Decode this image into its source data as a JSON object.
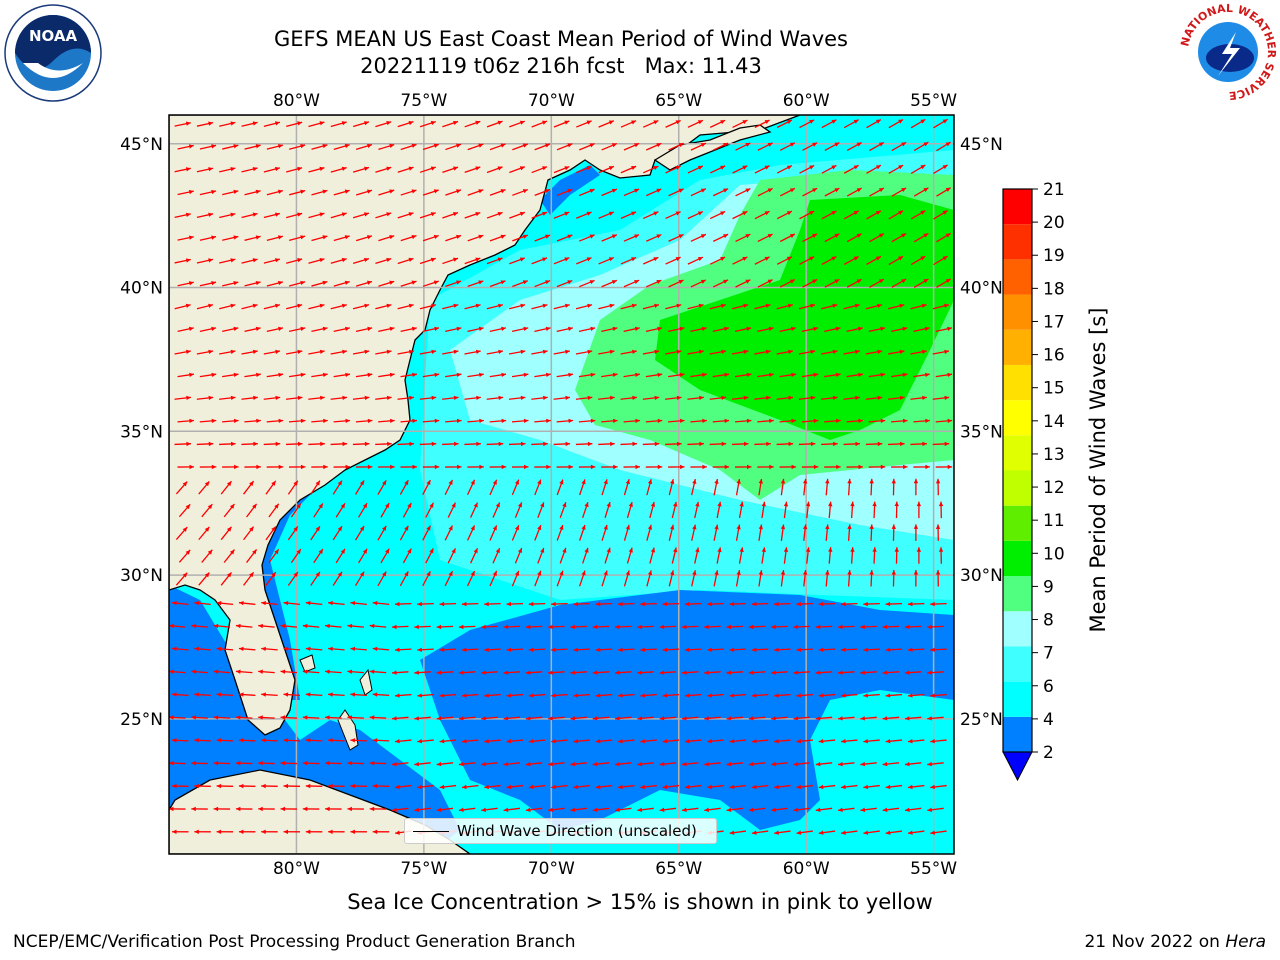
{
  "title": {
    "line1": "GEFS MEAN US East Coast Mean Period of Wind Waves",
    "line2": "20221119 t06z 216h fcst   Max: 11.43"
  },
  "map": {
    "lon_ticks": [
      "80°W",
      "75°W",
      "70°W",
      "65°W",
      "60°W",
      "55°W"
    ],
    "lat_ticks": [
      "45°N",
      "40°N",
      "35°N",
      "30°N",
      "25°N"
    ],
    "lon_range": [
      -85,
      -54.2
    ],
    "lat_range": [
      20.3,
      46
    ],
    "colors": {
      "land": "#efefdc",
      "ocean_base": "#00ffff",
      "gridline": "#b0b0b0",
      "arrow": "#ff0000"
    },
    "legend_label": "Wind Wave Direction (unscaled)"
  },
  "colorbar": {
    "label": "Mean Period of Wind Waves [s]",
    "ticks": [
      "2",
      "4",
      "6",
      "7",
      "8",
      "9",
      "10",
      "11",
      "12",
      "13",
      "14",
      "15",
      "16",
      "17",
      "18",
      "19",
      "20",
      "21"
    ],
    "colors": [
      "#0080ff",
      "#00ffff",
      "#40ffff",
      "#a0ffff",
      "#50ff80",
      "#00ee00",
      "#60ee00",
      "#c0ff00",
      "#e0ff00",
      "#ffff00",
      "#ffe000",
      "#ffb000",
      "#ff9000",
      "#ff6000",
      "#ff3000",
      "#ff0000"
    ],
    "extend_color": "#0000ff"
  },
  "ice_note": "Sea Ice Concentration > 15% is shown in pink to yellow",
  "footer": {
    "left": "NCEP/EMC/Verification Post Processing Product Generation Branch",
    "date": "21 Nov 2022 on ",
    "machine": "Hera"
  },
  "logos": {
    "noaa_text": "NOAA",
    "nws_text": "NATIONAL WEATHER SERVICE"
  }
}
